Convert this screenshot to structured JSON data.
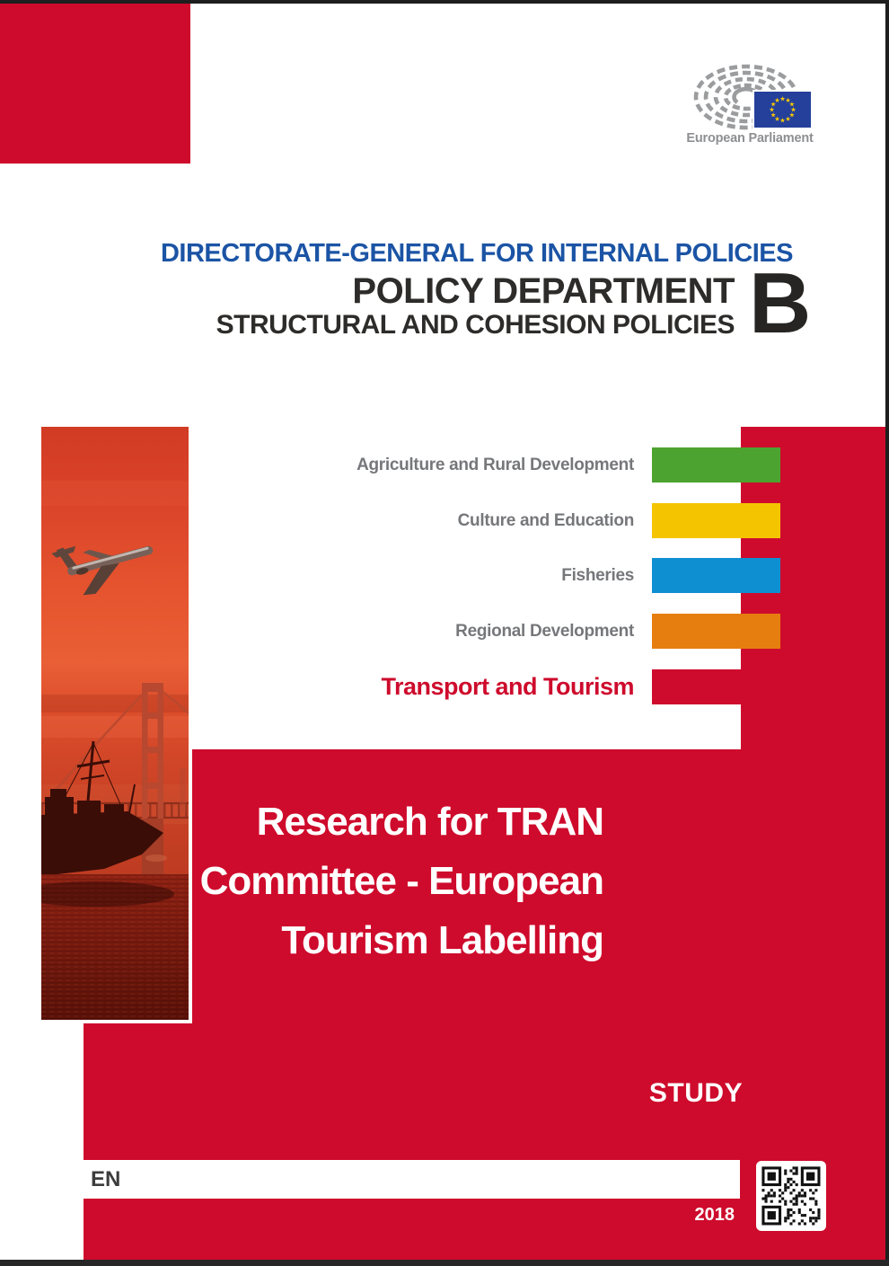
{
  "header": {
    "dg_line": "DIRECTORATE-GENERAL FOR INTERNAL POLICIES",
    "dept_line1": "POLICY DEPARTMENT",
    "dept_line2": "STRUCTURAL AND COHESION POLICIES",
    "dept_letter": "B"
  },
  "logo": {
    "caption": "European Parliament"
  },
  "policy_areas": [
    {
      "label": "Agriculture and Rural Development",
      "color": "#4DA32F",
      "highlight": false
    },
    {
      "label": "Culture and Education",
      "color": "#F5C400",
      "highlight": false
    },
    {
      "label": "Fisheries",
      "color": "#0E8FD1",
      "highlight": false
    },
    {
      "label": "Regional Development",
      "color": "#E67E0F",
      "highlight": false
    },
    {
      "label": "Transport and Tourism",
      "color": "#CE0B2C",
      "highlight": true
    }
  ],
  "title": {
    "lines": [
      "Research for TRAN",
      "Committee - European",
      "Tourism Labelling"
    ]
  },
  "doc_type": "STUDY",
  "language": "EN",
  "year": "2018",
  "colors": {
    "brand_red": "#CE0B2C",
    "heading_blue": "#1B54A5",
    "dark_text": "#2D2C2B",
    "label_grey": "#76777A",
    "logo_grey": "#9B9C9E",
    "caption_grey": "#8E8F92",
    "flag_blue": "#24409A",
    "star_yellow": "#FFCC00",
    "edge_dark": "#1E1E1E"
  }
}
